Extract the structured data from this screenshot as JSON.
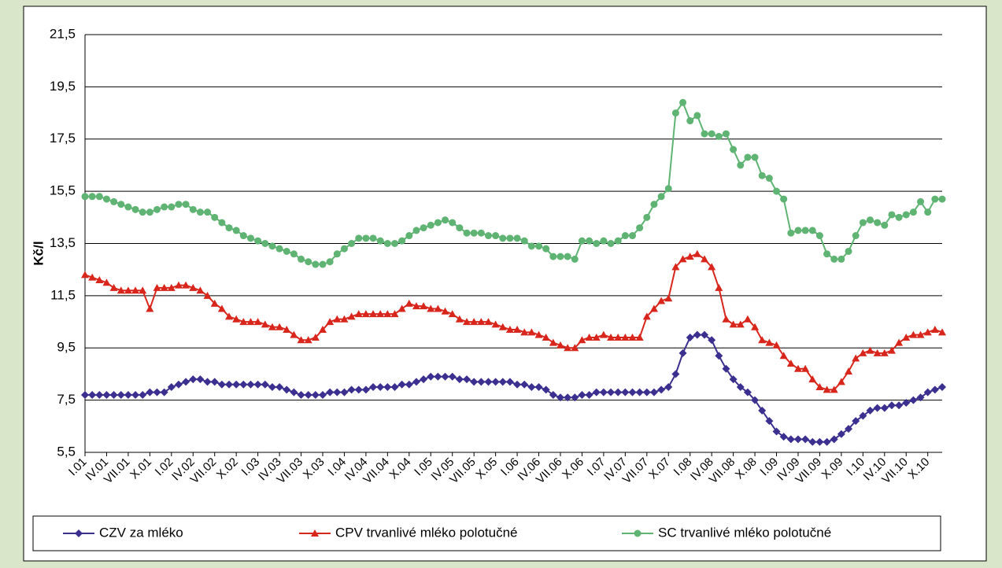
{
  "chart_data": {
    "type": "line",
    "y_label": "Kč/l",
    "categories": [
      "I.01",
      null,
      null,
      "IV.01",
      null,
      null,
      "VII.01",
      null,
      null,
      "X.01",
      null,
      null,
      "I.02",
      null,
      null,
      "IV.02",
      null,
      null,
      "VII.02",
      null,
      null,
      "X.02",
      null,
      null,
      "I.03",
      null,
      null,
      "IV.03",
      null,
      null,
      "VII.03",
      null,
      null,
      "X.03",
      null,
      null,
      "I.04",
      null,
      null,
      "IV.04",
      null,
      null,
      "VII.04",
      null,
      null,
      "X.04",
      null,
      null,
      "I.05",
      null,
      null,
      "IV.05",
      null,
      null,
      "VII.05",
      null,
      null,
      "X.05",
      null,
      null,
      "I.06",
      null,
      null,
      "IV.06",
      null,
      null,
      "VII.06",
      null,
      null,
      "X.06",
      null,
      null,
      "I.07",
      null,
      null,
      "IV.07",
      null,
      null,
      "VII.07",
      null,
      null,
      "X.07",
      null,
      null,
      "I.08",
      null,
      null,
      "IV.08",
      null,
      null,
      "VII.08",
      null,
      null,
      "X.08",
      null,
      null,
      "I.09",
      null,
      null,
      "IV.09",
      null,
      null,
      "VII.09",
      null,
      null,
      "X.09",
      null,
      null,
      "I.10",
      null,
      null,
      "IV.10",
      null,
      null,
      "VII.10",
      null,
      null,
      "X.10",
      null,
      null
    ],
    "series": [
      {
        "name": "CZV za mléko",
        "color": "#3b2f8f",
        "marker": "diamond",
        "values": [
          7.7,
          7.7,
          7.7,
          7.7,
          7.7,
          7.7,
          7.7,
          7.7,
          7.7,
          7.8,
          7.8,
          7.8,
          8.0,
          8.1,
          8.2,
          8.3,
          8.3,
          8.2,
          8.2,
          8.1,
          8.1,
          8.1,
          8.1,
          8.1,
          8.1,
          8.1,
          8.0,
          8.0,
          7.9,
          7.8,
          7.7,
          7.7,
          7.7,
          7.7,
          7.8,
          7.8,
          7.8,
          7.9,
          7.9,
          7.9,
          8.0,
          8.0,
          8.0,
          8.0,
          8.1,
          8.1,
          8.2,
          8.3,
          8.4,
          8.4,
          8.4,
          8.4,
          8.3,
          8.3,
          8.2,
          8.2,
          8.2,
          8.2,
          8.2,
          8.2,
          8.1,
          8.1,
          8.0,
          8.0,
          7.9,
          7.7,
          7.6,
          7.6,
          7.6,
          7.7,
          7.7,
          7.8,
          7.8,
          7.8,
          7.8,
          7.8,
          7.8,
          7.8,
          7.8,
          7.8,
          7.9,
          8.0,
          8.5,
          9.3,
          9.9,
          10.0,
          10.0,
          9.8,
          9.2,
          8.7,
          8.3,
          8.0,
          7.8,
          7.5,
          7.1,
          6.7,
          6.3,
          6.1,
          6.0,
          6.0,
          6.0,
          5.9,
          5.9,
          5.9,
          6.0,
          6.2,
          6.4,
          6.7,
          6.9,
          7.1,
          7.2,
          7.2,
          7.3,
          7.3,
          7.4,
          7.5,
          7.6,
          7.8,
          7.9,
          8.0
        ]
      },
      {
        "name": "CPV trvanlivé mléko polotučné",
        "color": "#d9261c",
        "marker": "triangle",
        "values": [
          12.3,
          12.2,
          12.1,
          12.0,
          11.8,
          11.7,
          11.7,
          11.7,
          11.7,
          11.0,
          11.8,
          11.8,
          11.8,
          11.9,
          11.9,
          11.8,
          11.7,
          11.5,
          11.2,
          11.0,
          10.7,
          10.6,
          10.5,
          10.5,
          10.5,
          10.4,
          10.3,
          10.3,
          10.2,
          10.0,
          9.8,
          9.8,
          9.9,
          10.2,
          10.5,
          10.6,
          10.6,
          10.7,
          10.8,
          10.8,
          10.8,
          10.8,
          10.8,
          10.8,
          11.0,
          11.2,
          11.1,
          11.1,
          11.0,
          11.0,
          10.9,
          10.8,
          10.6,
          10.5,
          10.5,
          10.5,
          10.5,
          10.4,
          10.3,
          10.2,
          10.2,
          10.1,
          10.1,
          10.0,
          9.9,
          9.7,
          9.6,
          9.5,
          9.5,
          9.8,
          9.9,
          9.9,
          10.0,
          9.9,
          9.9,
          9.9,
          9.9,
          9.9,
          10.7,
          11.0,
          11.3,
          11.4,
          12.6,
          12.9,
          13.0,
          13.1,
          12.9,
          12.6,
          11.8,
          10.6,
          10.4,
          10.4,
          10.6,
          10.3,
          9.8,
          9.7,
          9.6,
          9.2,
          8.9,
          8.7,
          8.7,
          8.3,
          8.0,
          7.9,
          7.9,
          8.2,
          8.6,
          9.1,
          9.3,
          9.4,
          9.3,
          9.3,
          9.4,
          9.7,
          9.9,
          10.0,
          10.0,
          10.1,
          10.2,
          10.1
        ]
      },
      {
        "name": "SC trvanlivé mléko polotučné",
        "color": "#5fb373",
        "marker": "circle",
        "values": [
          15.3,
          15.3,
          15.3,
          15.2,
          15.1,
          15.0,
          14.9,
          14.8,
          14.7,
          14.7,
          14.8,
          14.9,
          14.9,
          15.0,
          15.0,
          14.8,
          14.7,
          14.7,
          14.5,
          14.3,
          14.1,
          14.0,
          13.8,
          13.7,
          13.6,
          13.5,
          13.4,
          13.3,
          13.2,
          13.1,
          12.9,
          12.8,
          12.7,
          12.7,
          12.8,
          13.1,
          13.3,
          13.5,
          13.7,
          13.7,
          13.7,
          13.6,
          13.5,
          13.5,
          13.6,
          13.8,
          14.0,
          14.1,
          14.2,
          14.3,
          14.4,
          14.3,
          14.1,
          13.9,
          13.9,
          13.9,
          13.8,
          13.8,
          13.7,
          13.7,
          13.7,
          13.6,
          13.4,
          13.4,
          13.3,
          13.0,
          13.0,
          13.0,
          12.9,
          13.6,
          13.6,
          13.5,
          13.6,
          13.5,
          13.6,
          13.8,
          13.8,
          14.1,
          14.5,
          15.0,
          15.3,
          15.6,
          18.5,
          18.9,
          18.2,
          18.4,
          17.7,
          17.7,
          17.6,
          17.7,
          17.1,
          16.5,
          16.8,
          16.8,
          16.1,
          16.0,
          15.5,
          15.2,
          13.9,
          14.0,
          14.0,
          14.0,
          13.8,
          13.1,
          12.9,
          12.9,
          13.2,
          13.8,
          14.3,
          14.4,
          14.3,
          14.2,
          14.6,
          14.5,
          14.6,
          14.7,
          15.1,
          14.7,
          15.2,
          15.2
        ]
      }
    ],
    "ylim": [
      5.5,
      21.5
    ],
    "yticks": [
      {
        "value": 5.5,
        "label": "5,5"
      },
      {
        "value": 7.5,
        "label": "7,5"
      },
      {
        "value": 9.5,
        "label": "9,5"
      },
      {
        "value": 11.5,
        "label": "11,5"
      },
      {
        "value": 13.5,
        "label": "13,5"
      },
      {
        "value": 15.5,
        "label": "15,5"
      },
      {
        "value": 17.5,
        "label": "17,5"
      },
      {
        "value": 19.5,
        "label": "19,5"
      },
      {
        "value": 21.5,
        "label": "21,5"
      }
    ],
    "grid": true,
    "legend": "bottom"
  }
}
